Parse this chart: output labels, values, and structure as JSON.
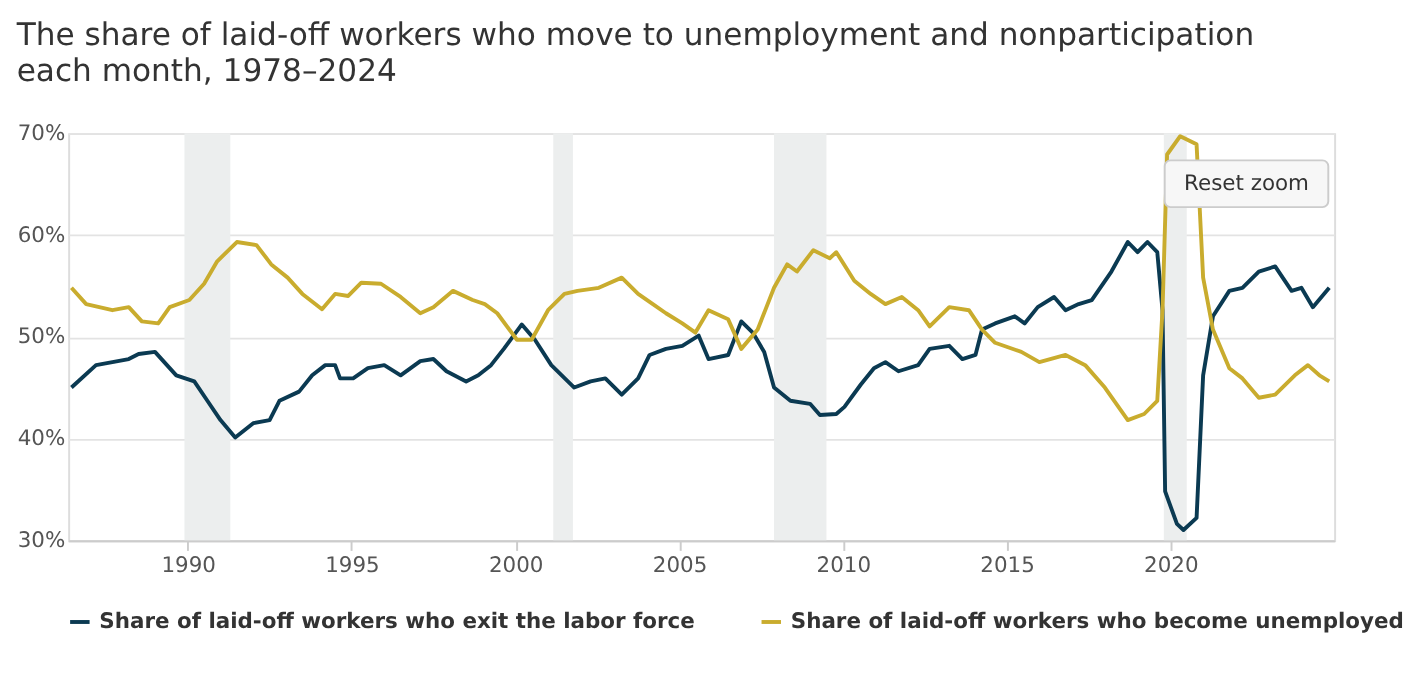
{
  "chart_data": {
    "type": "line",
    "title": [
      "The share of laid-off workers who move to unemployment and nonparticipation",
      "each month, 1978–2024"
    ],
    "series": [
      {
        "name": "Share of laid-off workers who exit the labor force",
        "color": "#0b3a52",
        "x": [
          1986.45,
          1987.2,
          1987.7,
          1988.2,
          1988.5,
          1989.0,
          1989.65,
          1990.2,
          1990.6,
          1991.0,
          1991.45,
          1992.0,
          1992.5,
          1992.8,
          1993.4,
          1993.8,
          1994.2,
          1994.5,
          1994.65,
          1995.05,
          1995.5,
          1996.0,
          1996.5,
          1997.1,
          1997.5,
          1997.9,
          1998.5,
          1998.87,
          1999.26,
          1999.65,
          2000.2,
          2000.6,
          2001.1,
          2001.8,
          2002.3,
          2002.75,
          2003.25,
          2003.75,
          2004.1,
          2004.6,
          2005.1,
          2005.6,
          2005.9,
          2006.5,
          2006.9,
          2007.25,
          2007.6,
          2007.9,
          2008.4,
          2009.0,
          2009.3,
          2009.8,
          2010.05,
          2010.55,
          2010.95,
          2011.3,
          2011.7,
          2012.3,
          2012.65,
          2013.25,
          2013.65,
          2014.05,
          2014.25,
          2014.65,
          2015.25,
          2015.55,
          2015.95,
          2016.45,
          2016.8,
          2017.2,
          2017.6,
          2018.2,
          2018.7,
          2019.0,
          2019.3,
          2019.6,
          2019.76,
          2019.84,
          2020.2,
          2020.4,
          2020.8,
          2021.0,
          2021.3,
          2021.8,
          2022.2,
          2022.7,
          2023.2,
          2023.7,
          2024.0,
          2024.35,
          2024.85
        ],
        "values": [
          45.0,
          47.2,
          47.5,
          47.8,
          48.3,
          48.5,
          46.2,
          45.6,
          43.7,
          41.8,
          40.1,
          41.5,
          41.8,
          43.7,
          44.6,
          46.2,
          47.2,
          47.2,
          45.9,
          45.9,
          46.9,
          47.2,
          46.2,
          47.6,
          47.8,
          46.6,
          45.6,
          46.2,
          47.2,
          48.8,
          51.2,
          49.7,
          47.2,
          45.0,
          45.6,
          45.9,
          44.3,
          45.9,
          48.2,
          48.8,
          49.1,
          50.1,
          47.8,
          48.2,
          51.5,
          50.4,
          48.5,
          45.0,
          43.7,
          43.4,
          42.3,
          42.4,
          43.1,
          45.3,
          46.9,
          47.5,
          46.6,
          47.2,
          48.8,
          49.1,
          47.8,
          48.2,
          50.7,
          51.3,
          52.0,
          51.3,
          52.9,
          53.9,
          52.6,
          53.2,
          53.6,
          56.4,
          59.3,
          58.3,
          59.3,
          58.3,
          52.6,
          34.8,
          31.6,
          31.0,
          32.2,
          46.2,
          52.0,
          54.5,
          54.8,
          56.4,
          56.9,
          54.5,
          54.8,
          52.9,
          54.8
        ]
      },
      {
        "name": "Share of laid-off workers who become unemployed",
        "color": "#c9ac2e",
        "x": [
          1986.45,
          1986.9,
          1987.7,
          1988.2,
          1988.6,
          1989.1,
          1989.45,
          1990.05,
          1990.5,
          1990.9,
          1991.5,
          1992.1,
          1992.55,
          1993.05,
          1993.5,
          1994.1,
          1994.5,
          1994.9,
          1995.3,
          1995.9,
          1996.5,
          1997.1,
          1997.5,
          1998.1,
          1998.7,
          1999.07,
          1999.45,
          2000.05,
          2000.5,
          2001.0,
          2001.5,
          2001.9,
          2002.55,
          2003.25,
          2003.75,
          2004.2,
          2004.6,
          2005.1,
          2005.5,
          2005.9,
          2006.5,
          2006.9,
          2007.4,
          2007.9,
          2008.3,
          2008.6,
          2009.1,
          2009.6,
          2009.8,
          2010.35,
          2010.85,
          2011.3,
          2011.8,
          2012.3,
          2012.65,
          2013.25,
          2013.85,
          2014.25,
          2014.65,
          2015.45,
          2016.0,
          2016.8,
          2017.4,
          2018.0,
          2018.7,
          2019.2,
          2019.6,
          2019.76,
          2019.9,
          2020.3,
          2020.8,
          2021.0,
          2021.3,
          2021.8,
          2022.2,
          2022.7,
          2023.2,
          2023.8,
          2024.2,
          2024.55,
          2024.85
        ],
        "values": [
          54.8,
          53.2,
          52.6,
          52.9,
          51.5,
          51.3,
          52.9,
          53.6,
          55.2,
          57.4,
          59.3,
          59.0,
          57.1,
          55.8,
          54.2,
          52.7,
          54.2,
          54.0,
          55.3,
          55.2,
          53.9,
          52.3,
          52.9,
          54.5,
          53.6,
          53.2,
          52.3,
          49.7,
          49.7,
          52.6,
          54.2,
          54.5,
          54.8,
          55.8,
          54.2,
          53.2,
          52.3,
          51.3,
          50.4,
          52.6,
          51.7,
          48.8,
          50.7,
          54.8,
          57.1,
          56.4,
          58.5,
          57.7,
          58.3,
          55.5,
          54.2,
          53.2,
          53.9,
          52.6,
          51.0,
          52.9,
          52.6,
          50.7,
          49.4,
          48.5,
          47.5,
          48.2,
          47.2,
          45.0,
          41.8,
          42.4,
          43.7,
          52.6,
          67.9,
          69.7,
          68.9,
          55.8,
          50.7,
          46.9,
          45.9,
          44.0,
          44.3,
          46.2,
          47.2,
          46.2,
          45.6
        ]
      }
    ],
    "xlim": [
      1986.35,
      2025.0
    ],
    "xticks": [
      1990,
      1995,
      2000,
      2005,
      2010,
      2015,
      2020
    ],
    "ylim": [
      30,
      70
    ],
    "yticks": [
      {
        "value": 30,
        "label": "30%"
      },
      {
        "value": 40,
        "label": "40%"
      },
      {
        "value": 50,
        "label": "50%"
      },
      {
        "value": 60,
        "label": "60%"
      },
      {
        "value": 70,
        "label": "70%"
      }
    ],
    "bands": [
      {
        "axis": "x",
        "from": 1989.9,
        "to": 1991.3,
        "color": "#eceeee"
      },
      {
        "axis": "x",
        "from": 2001.16,
        "to": 2001.76,
        "color": "#eceeee"
      },
      {
        "axis": "x",
        "from": 2007.9,
        "to": 2009.5,
        "color": "#eceeee"
      },
      {
        "axis": "x",
        "from": 2019.8,
        "to": 2020.5,
        "color": "#eceeee"
      }
    ],
    "annotations": [
      "Reset zoom"
    ],
    "grid": "y",
    "legend": "bottom",
    "marker": "none",
    "line_style": "solid"
  }
}
